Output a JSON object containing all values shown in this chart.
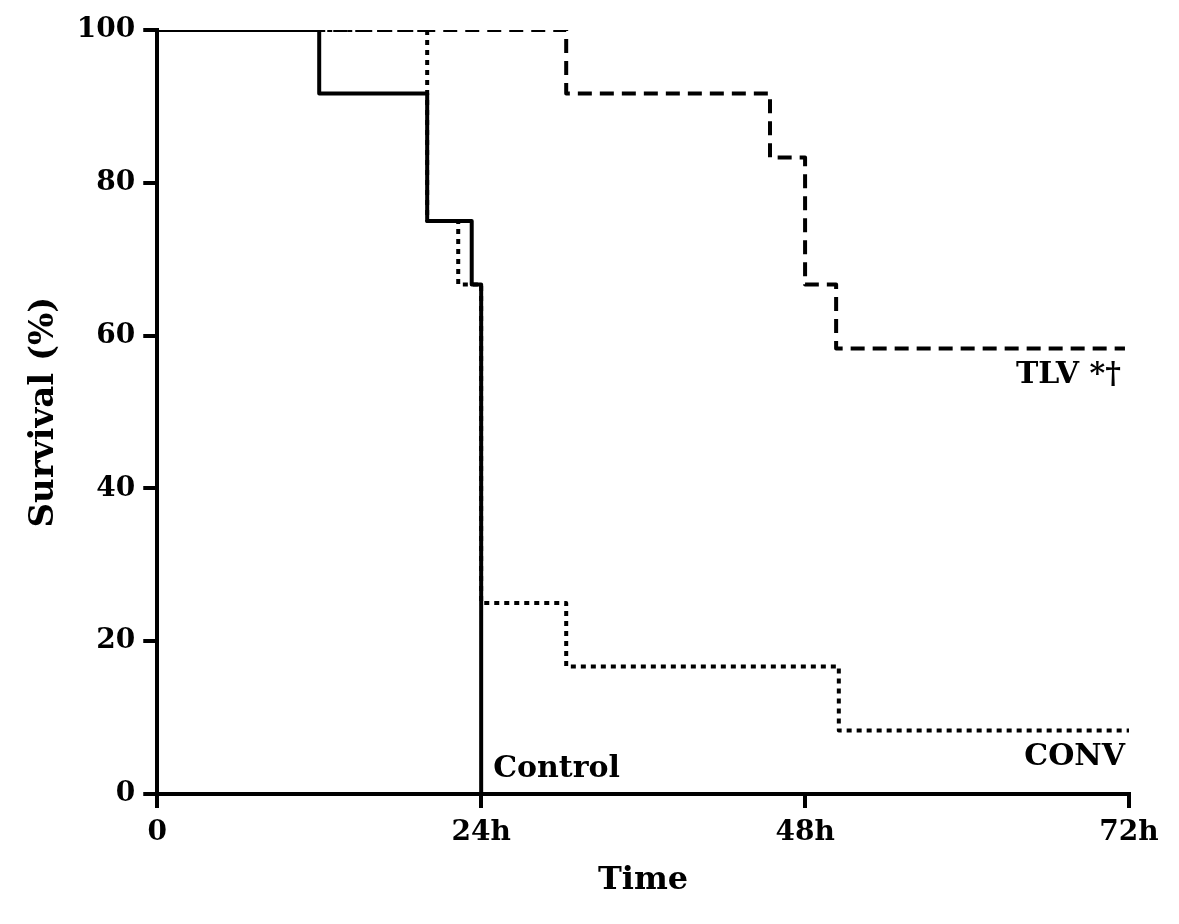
{
  "chart_data": {
    "type": "step",
    "xlabel": "Time",
    "ylabel": "Survival (%)",
    "xlim": [
      0,
      72
    ],
    "xticks": [
      0,
      {
        "value": 24,
        "label": "24h"
      },
      {
        "value": 48,
        "label": "48h"
      },
      {
        "value": 72,
        "label": "72h"
      }
    ],
    "ylim": [
      0,
      100
    ],
    "yticks": [
      0,
      20,
      40,
      60,
      80,
      100
    ],
    "grid": false,
    "legend": false,
    "marker": "none",
    "series": [
      {
        "name": "Control",
        "color": "#000000",
        "line_style": "solid",
        "x": [
          0,
          12,
          20,
          23.3,
          24
        ],
        "values": [
          100,
          91.7,
          75,
          66.7,
          0
        ]
      },
      {
        "name": "CONV",
        "color": "#000000",
        "line_style": "dotted",
        "x": [
          0,
          20,
          22.3,
          24,
          30.3,
          50.5,
          72
        ],
        "values": [
          100,
          75,
          66.7,
          25,
          16.7,
          8.3,
          8.3
        ]
      },
      {
        "name": "TLV *†",
        "color": "#000000",
        "line_style": "dashed",
        "x": [
          0,
          30.3,
          45.4,
          48,
          50.3,
          71.7
        ],
        "values": [
          100,
          91.7,
          83.3,
          66.7,
          58.3,
          58.3
        ]
      }
    ]
  }
}
